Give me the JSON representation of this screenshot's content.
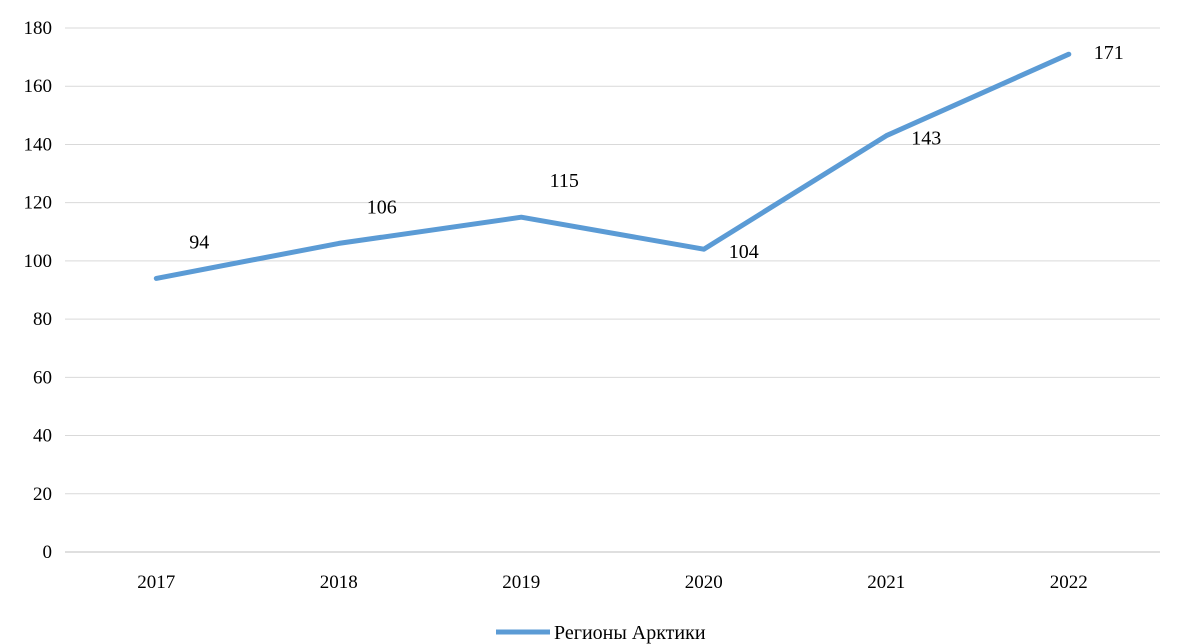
{
  "chart_data": {
    "type": "line",
    "categories": [
      "2017",
      "2018",
      "2019",
      "2020",
      "2021",
      "2022"
    ],
    "series": [
      {
        "name": "Регионы Арктики",
        "values": [
          94,
          106,
          115,
          104,
          143,
          171
        ],
        "color": "#5B9BD5"
      }
    ],
    "ylim": [
      0,
      180
    ],
    "yticks": [
      "0",
      "20",
      "40",
      "60",
      "80",
      "100",
      "120",
      "140",
      "160",
      "180"
    ],
    "grid": true,
    "legend_position": "bottom"
  }
}
